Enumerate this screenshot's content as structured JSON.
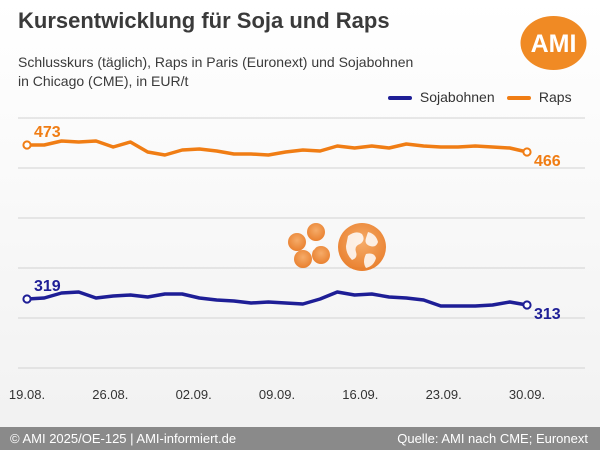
{
  "header": {
    "title": "Kursentwicklung für Soja und Raps",
    "subtitle_line1": "Schlusskurs (täglich), Raps in Paris (Euronext) und Sojabohnen",
    "subtitle_line2": "in Chicago (CME), in EUR/t",
    "logo_text": "AMI"
  },
  "footer": {
    "left": "© AMI 2025/OE-125 | AMI-informiert.de",
    "right": "Quelle: AMI nach CME; Euronext"
  },
  "colors": {
    "soja": "#1e1e96",
    "raps": "#f07d14",
    "grid": "#d2d2d2",
    "logo": "#f08a24"
  },
  "chart_data": {
    "type": "line",
    "x_ticks": [
      "19.08.",
      "26.08.",
      "02.09.",
      "09.09.",
      "16.09.",
      "23.09.",
      "30.09."
    ],
    "y_range": [
      250,
      500
    ],
    "gridlines": [
      250,
      300,
      350,
      400,
      450,
      500
    ],
    "series": [
      {
        "name": "Sojabohnen",
        "start_label": "319",
        "end_label": "313",
        "values": [
          319,
          320,
          325,
          326,
          320,
          322,
          323,
          321,
          324,
          324,
          320,
          318,
          317,
          315,
          316,
          315,
          314,
          319,
          326,
          323,
          324,
          321,
          320,
          318,
          312,
          312,
          312,
          313,
          316,
          313
        ]
      },
      {
        "name": "Raps",
        "start_label": "473",
        "end_label": "466",
        "values": [
          473,
          473,
          477,
          476,
          477,
          471,
          476,
          466,
          463,
          468,
          469,
          467,
          464,
          464,
          463,
          466,
          468,
          467,
          472,
          470,
          472,
          470,
          474,
          472,
          471,
          471,
          472,
          471,
          470,
          466
        ]
      }
    ]
  }
}
